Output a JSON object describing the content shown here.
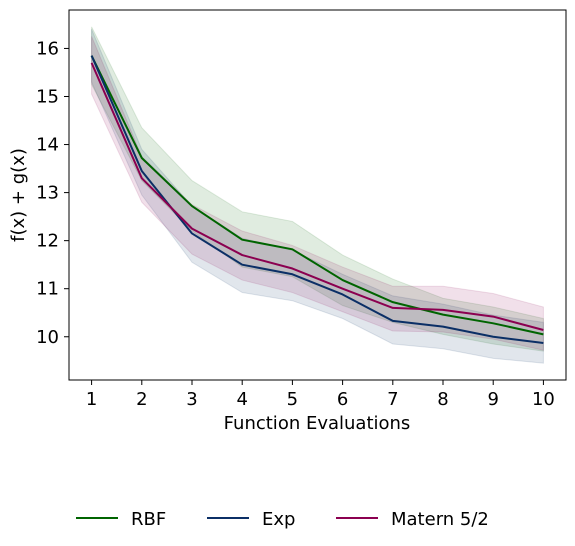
{
  "chart_data": {
    "type": "line",
    "title": "",
    "xlabel": "Function Evaluations",
    "ylabel": "f(x) + g(x)",
    "x": [
      1,
      2,
      3,
      4,
      5,
      6,
      7,
      8,
      9,
      10
    ],
    "xlim": [
      0.55,
      10.45
    ],
    "ylim": [
      9.1,
      16.8
    ],
    "xticks": [
      1,
      2,
      3,
      4,
      5,
      6,
      7,
      8,
      9,
      10
    ],
    "yticks": [
      10,
      11,
      12,
      13,
      14,
      15,
      16
    ],
    "grid": false,
    "legend_position": "bottom",
    "series": [
      {
        "name": "RBF",
        "color": "#006400",
        "values": [
          15.85,
          13.72,
          12.72,
          12.02,
          11.82,
          11.18,
          10.72,
          10.46,
          10.28,
          10.05
        ],
        "lower": [
          15.25,
          13.25,
          12.2,
          11.45,
          11.25,
          10.65,
          10.3,
          10.05,
          9.85,
          9.7
        ],
        "upper": [
          16.45,
          14.35,
          13.25,
          12.6,
          12.4,
          11.7,
          11.2,
          10.8,
          10.62,
          10.38
        ]
      },
      {
        "name": "Exp",
        "color": "#0b2f66",
        "values": [
          15.85,
          13.45,
          12.15,
          11.5,
          11.3,
          10.88,
          10.33,
          10.21,
          10.0,
          9.87
        ],
        "lower": [
          15.3,
          12.95,
          11.55,
          10.92,
          10.75,
          10.38,
          9.85,
          9.75,
          9.55,
          9.45
        ],
        "upper": [
          16.4,
          13.9,
          12.72,
          12.05,
          11.8,
          11.3,
          10.85,
          10.68,
          10.45,
          10.3
        ]
      },
      {
        "name": "Matern 5/2",
        "color": "#8b0050",
        "values": [
          15.7,
          13.3,
          12.25,
          11.7,
          11.42,
          11.0,
          10.6,
          10.56,
          10.42,
          10.14
        ],
        "lower": [
          15.05,
          12.8,
          11.72,
          11.18,
          10.92,
          10.52,
          10.12,
          10.1,
          9.95,
          9.72
        ],
        "upper": [
          16.25,
          13.75,
          12.75,
          12.2,
          11.9,
          11.45,
          11.05,
          11.05,
          10.9,
          10.62
        ]
      }
    ]
  }
}
